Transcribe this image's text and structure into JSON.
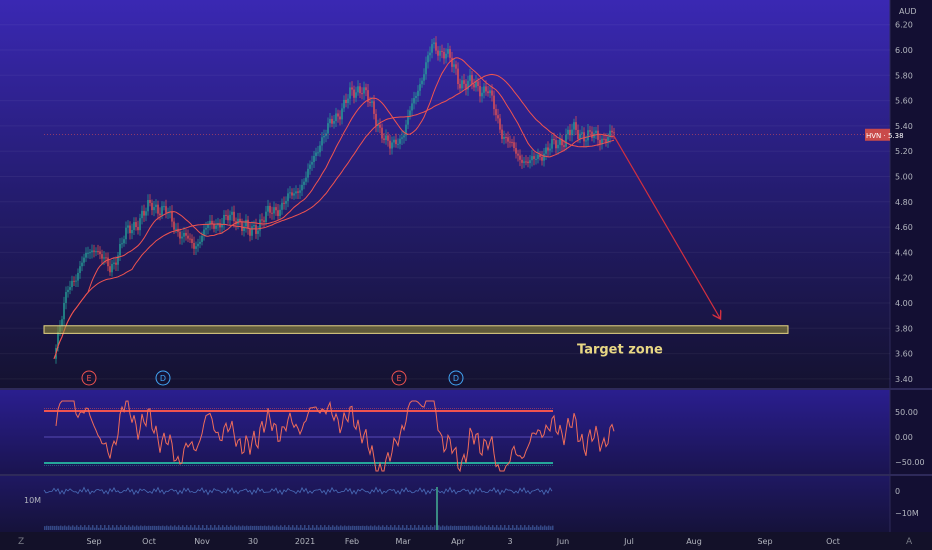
{
  "chart_data": [
    {
      "type": "line",
      "title": "",
      "currency": "AUD",
      "x_ticks": [
        "Sep",
        "Oct",
        "Nov",
        "30",
        "2021",
        "Feb",
        "Mar",
        "Apr",
        "3",
        "Jun",
        "Jul",
        "Aug",
        "Sep",
        "Oct"
      ],
      "ylim": [
        3.34,
        6.26
      ],
      "y_ticks": [
        "6.20",
        "6.00",
        "5.80",
        "5.60",
        "5.40",
        "5.20",
        "5.00",
        "4.80",
        "4.60",
        "4.40",
        "4.20",
        "4.00",
        "3.80",
        "3.60",
        "3.40"
      ],
      "series": [
        {
          "name": "",
          "color": "#ecd9c4",
          "x": [
            "2020-08-20",
            "2020-08-27",
            "2020-09-03",
            "2020-09-10",
            "2020-09-17",
            "2020-09-24",
            "2020-10-01",
            "2020-10-08",
            "2020-10-15",
            "2020-10-22",
            "2020-10-29",
            "2020-11-05",
            "2020-11-12",
            "2020-11-19",
            "2020-11-26",
            "2020-12-03",
            "2020-12-10",
            "2020-12-17",
            "2020-12-24",
            "2020-12-31",
            "2021-01-07",
            "2021-01-14",
            "2021-01-21",
            "2021-01-28",
            "2021-02-04",
            "2021-02-11",
            "2021-02-18",
            "2021-02-25",
            "2021-03-04",
            "2021-03-11",
            "2021-03-18",
            "2021-03-25",
            "2021-04-01",
            "2021-04-08",
            "2021-04-15",
            "2021-04-22",
            "2021-04-29",
            "2021-05-06",
            "2021-05-13",
            "2021-05-20",
            "2021-05-27"
          ],
          "values": [
            3.62,
            4.1,
            4.32,
            4.45,
            4.25,
            4.52,
            4.65,
            4.78,
            4.72,
            4.55,
            4.45,
            4.6,
            4.65,
            4.68,
            4.55,
            4.68,
            4.75,
            4.85,
            4.98,
            5.28,
            5.45,
            5.62,
            5.72,
            5.45,
            5.22,
            5.35,
            5.7,
            6.02,
            5.98,
            5.75,
            5.72,
            5.68,
            5.35,
            5.18,
            5.1,
            5.2,
            5.26,
            5.36,
            5.33,
            5.3,
            5.33
          ]
        },
        {
          "name": "",
          "color": "#ef5350",
          "x": [],
          "values": []
        }
      ],
      "last_price_label": "HVN · 5.38",
      "annotation": "Target zone",
      "target_zone": [
        3.76,
        3.82
      ],
      "projection": {
        "from": [
          "2021-05-27",
          5.32
        ],
        "to": [
          "2021-07-19",
          3.88
        ]
      },
      "event_markers": [
        "E",
        "D",
        "E",
        "D"
      ],
      "colors": {
        "background": "#120f2c",
        "bull": "#26a69a",
        "bear": "#ef5350",
        "ma": "#ef5350",
        "zone_fill": "#9a9334",
        "zone_border": "#e8d784",
        "arrow": "#d32f3f",
        "axis_text": "#b2b5be"
      }
    },
    {
      "type": "line",
      "title": "",
      "ylim": [
        -75,
        80
      ],
      "y_ticks": [
        "50.00",
        "0.00",
        "−50.00"
      ],
      "upper_level": 52,
      "lower_level": -52,
      "series": [
        {
          "name": "",
          "color": "#ef6c5a",
          "values": []
        }
      ],
      "colors": {
        "upper": "#ef5350",
        "lower": "#26a69a",
        "mid": "#6a5acd"
      }
    },
    {
      "type": "bar",
      "title": "",
      "label_left": "10M",
      "y_ticks": [
        "0",
        "−10M"
      ],
      "colors": {
        "volume": "#4a6db8",
        "spike": "#3a8a83"
      }
    }
  ],
  "bottom_left_icon": "Z",
  "bottom_right_icon": "A"
}
